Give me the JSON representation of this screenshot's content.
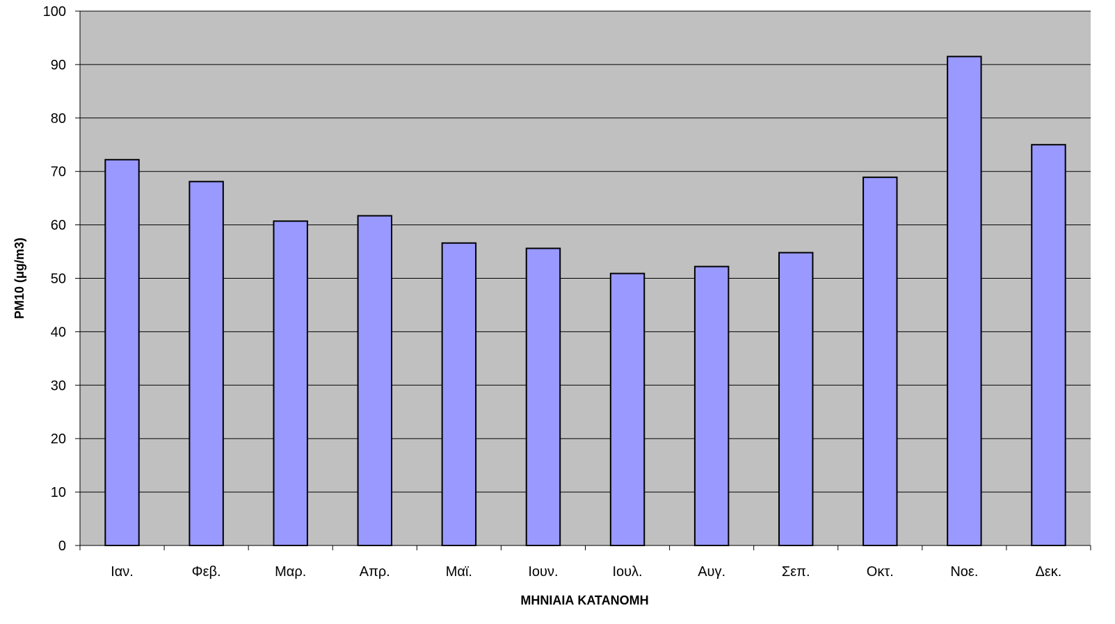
{
  "chart_data": {
    "type": "bar",
    "title": "",
    "xlabel": "ΜΗΝΙΑΙΑ ΚΑΤΑΝΟΜΗ",
    "ylabel": "PM10 (μg/m3)",
    "categories": [
      "Ιαν.",
      "Φεβ.",
      "Μαρ.",
      "Απρ.",
      "Μαϊ.",
      "Ιουν.",
      "Ιουλ.",
      "Αυγ.",
      "Σεπ.",
      "Οκτ.",
      "Νοε.",
      "Δεκ."
    ],
    "values": [
      72.2,
      68.1,
      60.7,
      61.7,
      56.6,
      55.6,
      50.9,
      52.2,
      54.8,
      68.9,
      91.5,
      75.0
    ],
    "ylim": [
      0,
      100
    ],
    "yticks": [
      0,
      10,
      20,
      30,
      40,
      50,
      60,
      70,
      80,
      90,
      100
    ],
    "grid": true,
    "legend": "none",
    "colors": {
      "plot_background": "#c0c0c0",
      "bar_fill": "#9999ff",
      "bar_stroke": "#000000",
      "gridline": "#000000"
    }
  }
}
